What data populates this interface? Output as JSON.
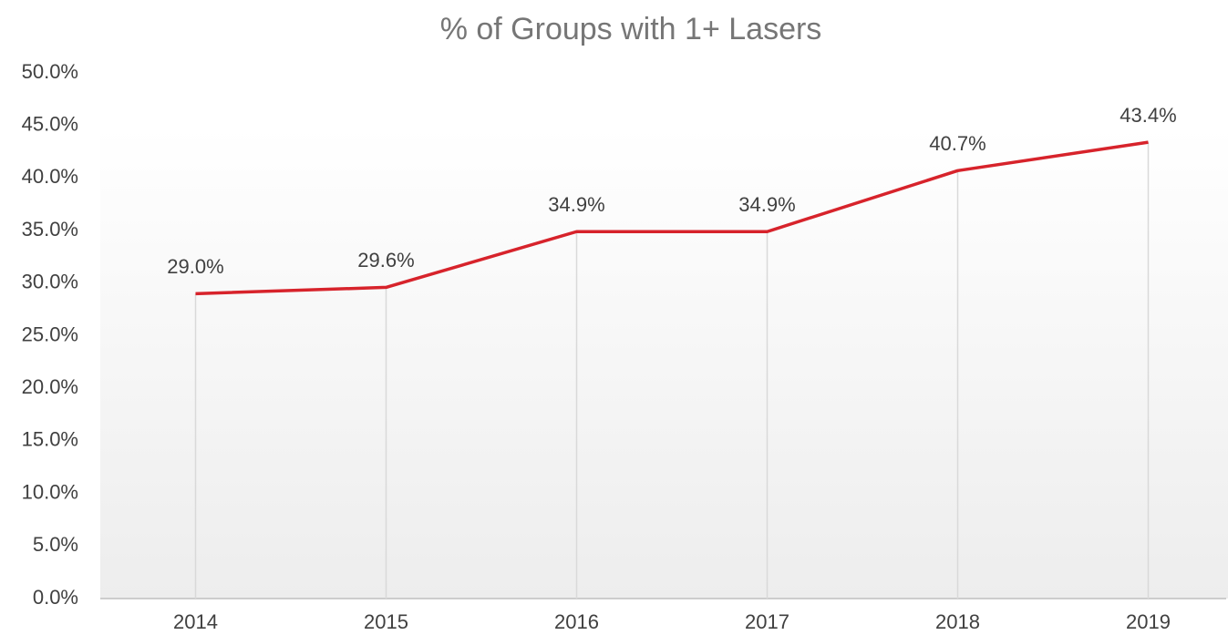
{
  "chart_data": {
    "type": "line",
    "title": "% of Groups with 1+ Lasers",
    "categories": [
      "2014",
      "2015",
      "2016",
      "2017",
      "2018",
      "2019"
    ],
    "series": [
      {
        "color": "#d7232b",
        "values": [
          29.0,
          29.6,
          34.9,
          34.9,
          40.7,
          43.4
        ],
        "value_labels": [
          "29.0%",
          "29.6%",
          "34.9%",
          "34.9%",
          "40.7%",
          "43.4%"
        ]
      }
    ],
    "ylim": [
      0,
      50
    ],
    "yticks": [
      {
        "value": 0,
        "label": "0.0%"
      },
      {
        "value": 5,
        "label": "5.0%"
      },
      {
        "value": 10,
        "label": "10.0%"
      },
      {
        "value": 15,
        "label": "15.0%"
      },
      {
        "value": 20,
        "label": "20.0%"
      },
      {
        "value": 25,
        "label": "25.0%"
      },
      {
        "value": 30,
        "label": "30.0%"
      },
      {
        "value": 35,
        "label": "35.0%"
      },
      {
        "value": 40,
        "label": "40.0%"
      },
      {
        "value": 45,
        "label": "45.0%"
      },
      {
        "value": 50,
        "label": "50.0%"
      }
    ],
    "grid": false
  }
}
